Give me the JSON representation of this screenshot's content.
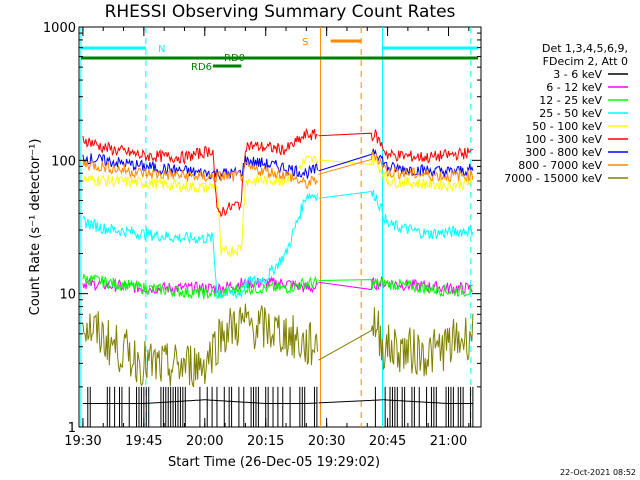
{
  "chart_data": {
    "type": "line",
    "title": "RHESSI Observing Summary Count Rates",
    "xlabel": "Start Time (26-Dec-05 19:29:02)",
    "ylabel": "Count Rate (s⁻¹ detector⁻¹)",
    "y_scale": "log",
    "ylim": [
      1,
      1000
    ],
    "y_ticks": [
      1,
      10,
      100,
      1000
    ],
    "y_tick_labels": [
      "1",
      "10",
      "100",
      "1000"
    ],
    "x_range": [
      "19:29:02",
      "21:08:00"
    ],
    "x_ticks": [
      "19:30",
      "19:45",
      "20:00",
      "20:15",
      "20:30",
      "20:45",
      "21:00"
    ],
    "grid": false,
    "legend_position": "right",
    "legend_header": [
      "Det 1,3,4,5,6,9,",
      "FDecim 2, Att 0"
    ],
    "timestamp": "22-Oct-2021 08:52",
    "gap": [
      "20:28",
      "20:41"
    ],
    "series": [
      {
        "name": "3 - 6 keV",
        "color": "#000000",
        "times": [
          "19:30",
          "19:45",
          "20:00",
          "20:15",
          "20:25",
          "20:44",
          "21:00",
          "21:06"
        ],
        "values": [
          1.5,
          1.5,
          1.6,
          1.5,
          1.5,
          1.6,
          1.5,
          1.5
        ]
      },
      {
        "name": "6 - 12 keV",
        "color": "#ff00ff",
        "times": [
          "19:30",
          "19:45",
          "20:00",
          "20:04",
          "20:09",
          "20:20",
          "20:25",
          "20:44",
          "21:00",
          "21:06"
        ],
        "values": [
          12,
          11,
          11,
          11,
          12,
          12,
          11,
          12,
          11,
          11
        ]
      },
      {
        "name": "12 - 25 keV",
        "color": "#00ff00",
        "times": [
          "19:30",
          "19:45",
          "20:00",
          "20:04",
          "20:09",
          "20:20",
          "20:25",
          "20:44",
          "21:00",
          "21:06"
        ],
        "values": [
          13,
          11,
          10,
          10,
          11,
          11,
          12,
          12,
          10.5,
          10.5
        ]
      },
      {
        "name": "25 - 50 keV",
        "color": "#00ffff",
        "times": [
          "19:30",
          "19:35",
          "19:45",
          "19:55",
          "20:02",
          "20:03",
          "20:09",
          "20:10",
          "20:15",
          "20:20",
          "20:25",
          "20:42",
          "20:45",
          "20:55",
          "21:06"
        ],
        "values": [
          35,
          31,
          28,
          26,
          26,
          10,
          10,
          12,
          13,
          20,
          55,
          55,
          33,
          28,
          30
        ]
      },
      {
        "name": "50 - 100 keV",
        "color": "#ffff00",
        "times": [
          "19:30",
          "19:45",
          "20:00",
          "20:03",
          "20:04",
          "20:09",
          "20:10",
          "20:20",
          "20:25",
          "20:42",
          "20:45",
          "21:00",
          "21:06"
        ],
        "values": [
          72,
          68,
          62,
          65,
          20,
          22,
          70,
          72,
          100,
          100,
          70,
          65,
          68
        ]
      },
      {
        "name": "100 - 300 keV",
        "color": "#ff0000",
        "times": [
          "19:30",
          "19:35",
          "19:45",
          "19:55",
          "20:02",
          "20:03",
          "20:09",
          "20:10",
          "20:20",
          "20:25",
          "20:42",
          "20:45",
          "20:55",
          "21:06"
        ],
        "values": [
          145,
          125,
          108,
          105,
          120,
          40,
          48,
          130,
          120,
          155,
          155,
          110,
          105,
          115
        ]
      },
      {
        "name": "300 - 800 keV",
        "color": "#0000ff",
        "times": [
          "19:30",
          "19:45",
          "20:00",
          "20:09",
          "20:10",
          "20:20",
          "20:25",
          "20:42",
          "20:45",
          "21:00",
          "21:06"
        ],
        "values": [
          105,
          90,
          80,
          80,
          100,
          88,
          80,
          120,
          88,
          82,
          85
        ]
      },
      {
        "name": "800 - 7000 keV",
        "color": "#ff8800",
        "times": [
          "19:30",
          "19:45",
          "20:00",
          "20:09",
          "20:10",
          "20:20",
          "20:25",
          "20:42",
          "20:45",
          "21:00",
          "21:06"
        ],
        "values": [
          95,
          80,
          75,
          76,
          88,
          78,
          66,
          110,
          82,
          76,
          78
        ]
      },
      {
        "name": "7000 - 15000 keV",
        "color": "#808000",
        "times": [
          "19:30",
          "19:38",
          "19:45",
          "19:50",
          "20:00",
          "20:04",
          "20:09",
          "20:20",
          "20:25",
          "20:42",
          "20:44",
          "20:55",
          "21:06"
        ],
        "values": [
          6,
          4,
          3,
          2.8,
          3,
          5,
          6,
          5,
          4,
          6,
          4,
          3.5,
          5
        ]
      }
    ],
    "annotations": {
      "night_bar_label": "N",
      "saa_bar_label": "S",
      "rd0_label": "RD0",
      "rd6_label": "RD6"
    }
  }
}
